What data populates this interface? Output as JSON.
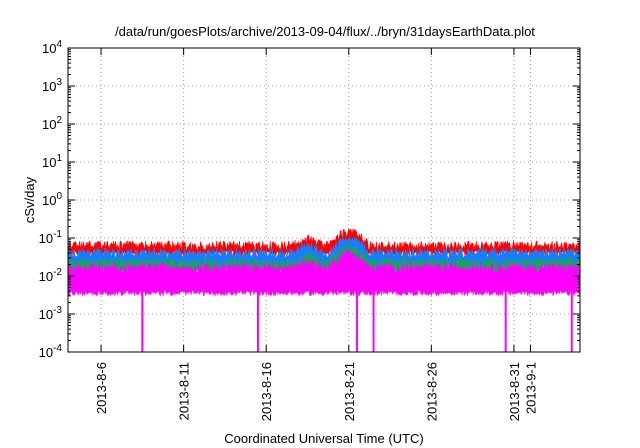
{
  "chart_data": {
    "type": "area",
    "title": "/data/run/goesPlots/archive/2013-09-04/flux/../bryn/31daysEarthData.plot",
    "xlabel": "Coordinated Universal Time (UTC)",
    "ylabel": "cSv/day",
    "yscale": "log",
    "ylim": [
      0.0001,
      10000
    ],
    "xlim": [
      "2013-08-04",
      "2013-09-04"
    ],
    "grid": true,
    "y_ticks": [
      {
        "base": "10",
        "exp": "-4"
      },
      {
        "base": "10",
        "exp": "-3"
      },
      {
        "base": "10",
        "exp": "-2"
      },
      {
        "base": "10",
        "exp": "-1"
      },
      {
        "base": "10",
        "exp": "0"
      },
      {
        "base": "10",
        "exp": "1"
      },
      {
        "base": "10",
        "exp": "2"
      },
      {
        "base": "10",
        "exp": "3"
      },
      {
        "base": "10",
        "exp": "4"
      }
    ],
    "x_ticks": [
      "2013-8-6",
      "2013-8-11",
      "2013-8-16",
      "2013-8-21",
      "2013-8-26",
      "2013-8-31",
      "2013-9-1"
    ],
    "series": [
      {
        "color": "#ff0000",
        "typical_range": [
          0.045,
          0.07
        ],
        "peak": {
          "x": "2013-08-21",
          "y": 0.17
        }
      },
      {
        "color": "#1a7cff",
        "typical_range": [
          0.02,
          0.045
        ],
        "peak": {
          "x": "2013-08-21",
          "y": 0.1
        }
      },
      {
        "color": "#17a65a",
        "typical_range": [
          0.015,
          0.025
        ]
      },
      {
        "color": "#ff00ff",
        "typical_range": [
          0.004,
          0.018
        ],
        "dips_to_min": [
          "2013-08-08",
          "2013-08-15",
          "2013-08-21",
          "2013-08-22",
          "2013-08-30",
          "2013-09-03"
        ]
      }
    ]
  },
  "colors": {
    "red": "#ff0000",
    "blue": "#1a7cff",
    "green": "#17a65a",
    "magenta": "#ff00ff",
    "grid": "#a0a0a0"
  }
}
